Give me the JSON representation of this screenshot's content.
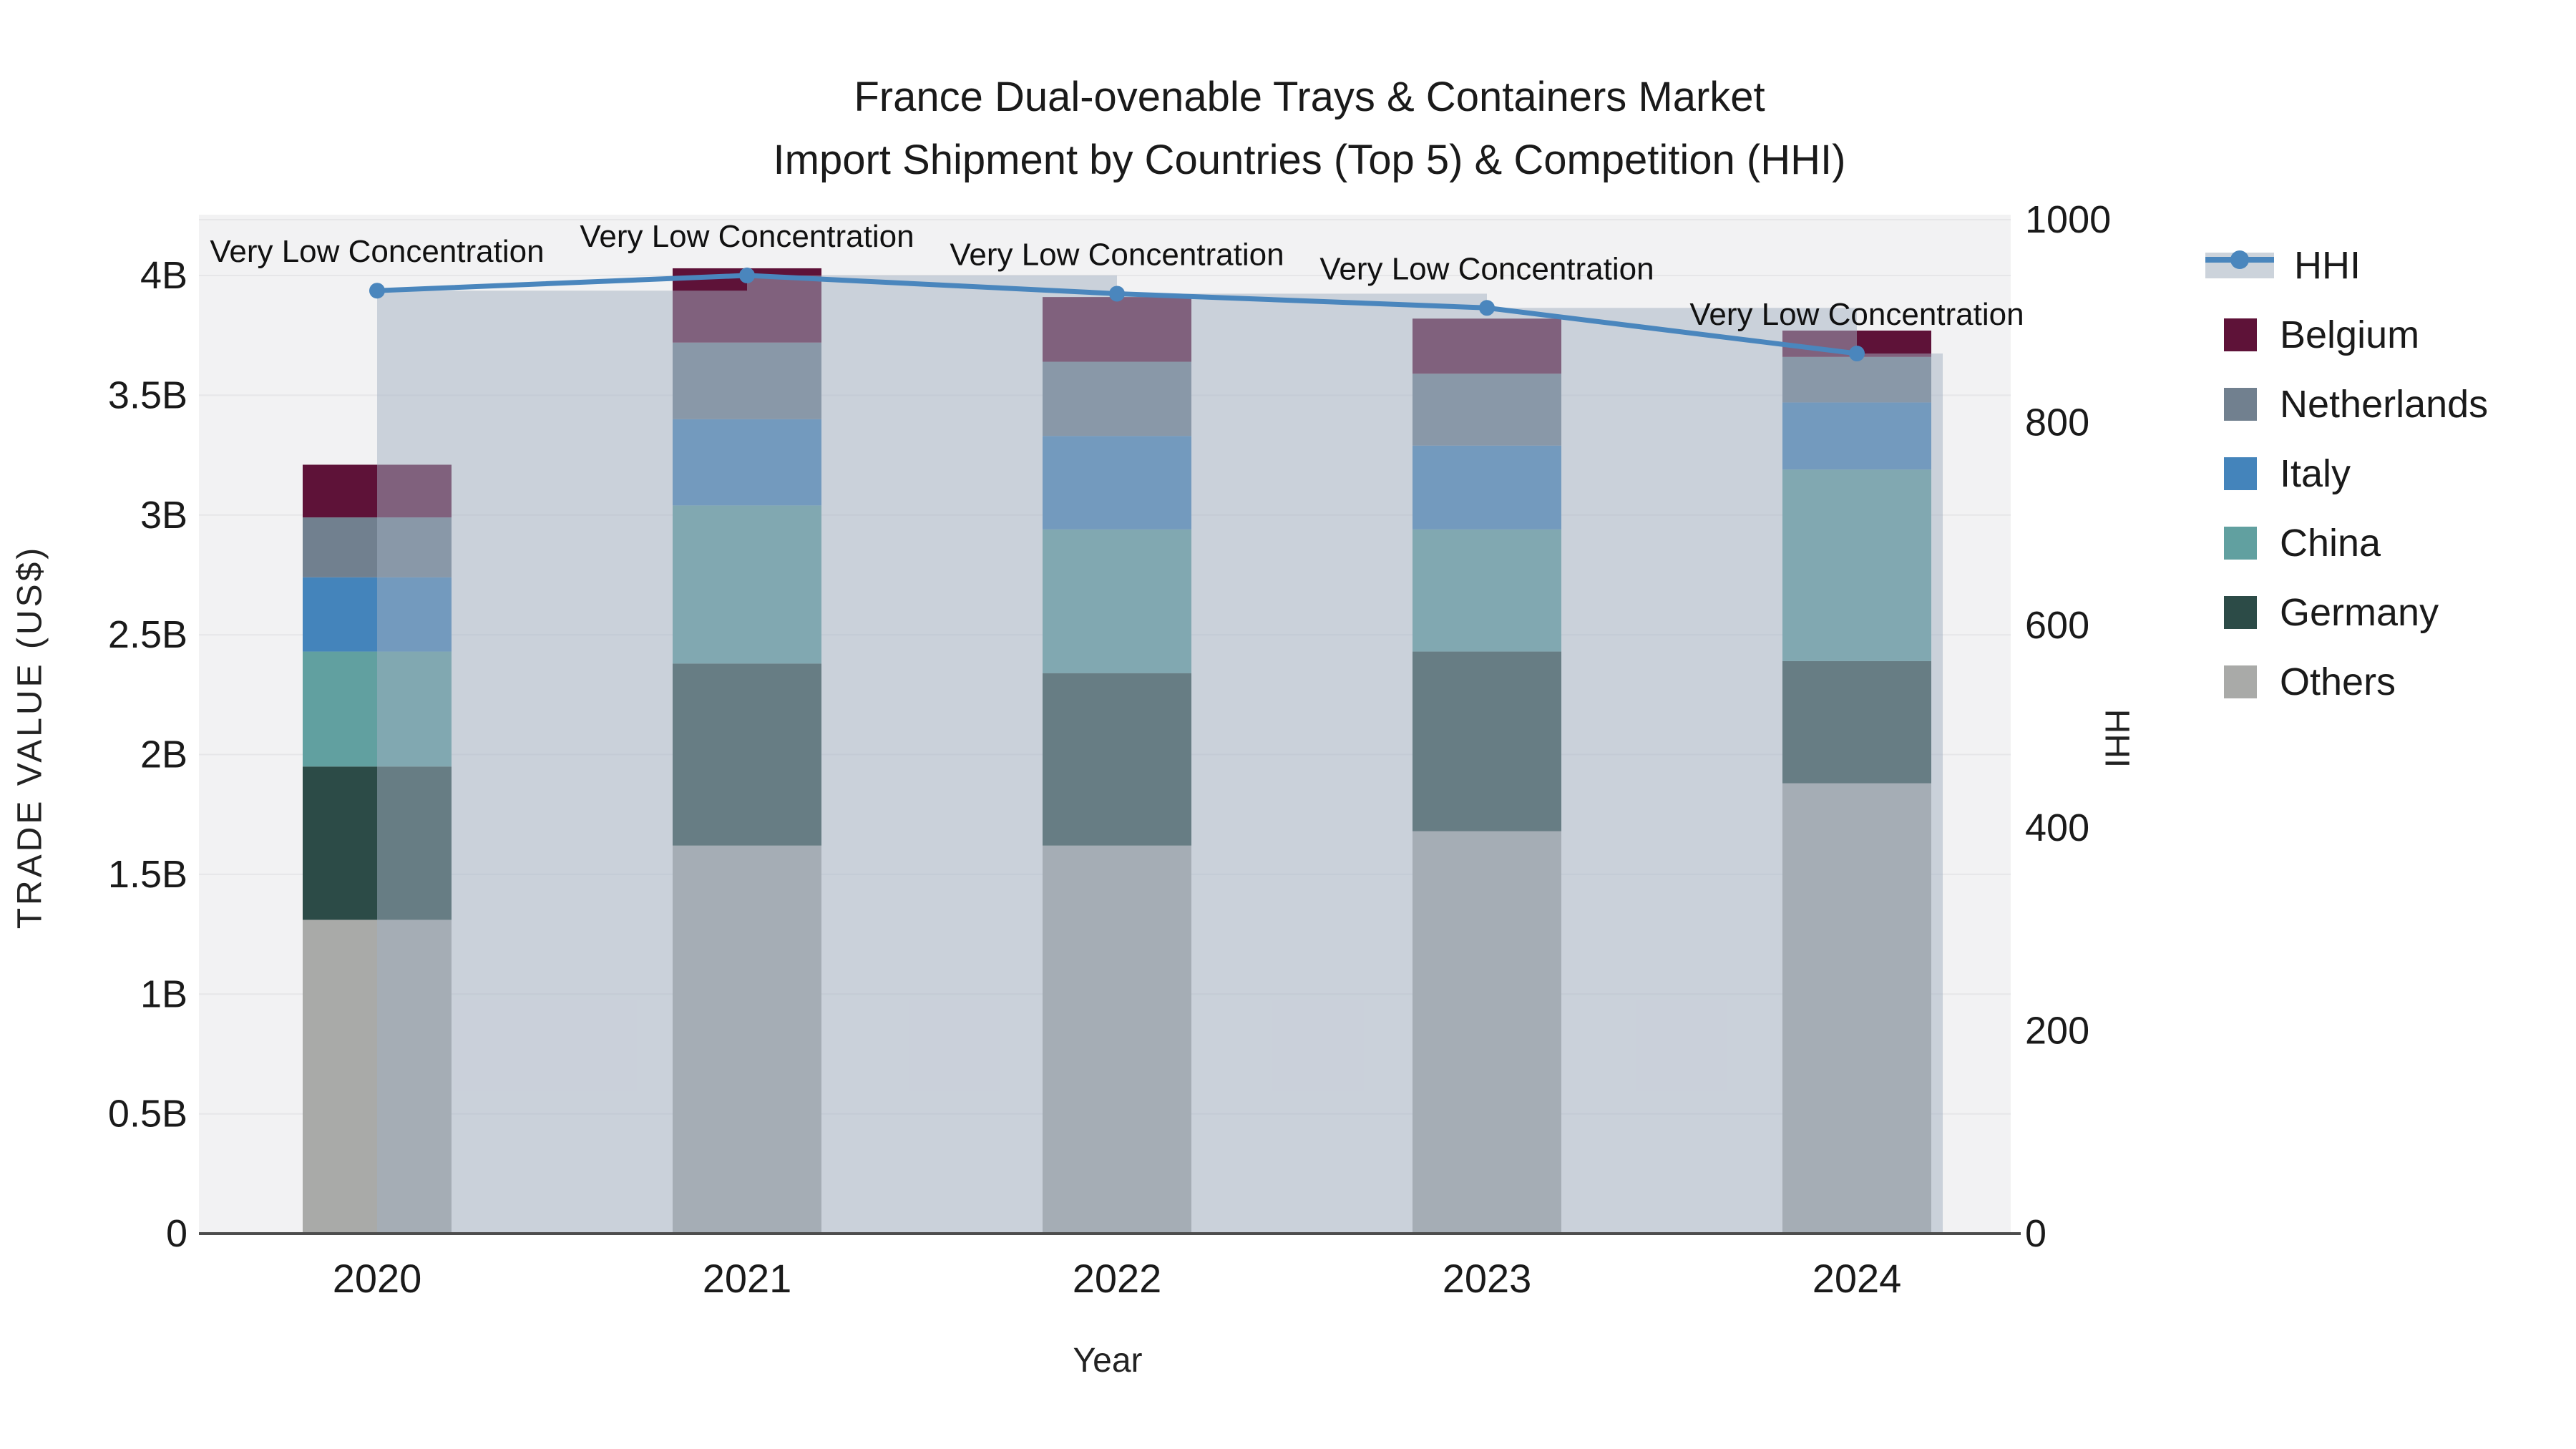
{
  "title": {
    "line1": "France Dual-ovenable Trays & Containers Market",
    "line2": "Import Shipment by Countries (Top 5) & Competition (HHI)"
  },
  "axes": {
    "x": {
      "title": "Year",
      "tick_labels": [
        "2020",
        "2021",
        "2022",
        "2023",
        "2024"
      ]
    },
    "y_left": {
      "title": "TRADE VALUE (US$)",
      "tick_labels": [
        "0",
        "0.5B",
        "1B",
        "1.5B",
        "2B",
        "2.5B",
        "3B",
        "3.5B",
        "4B"
      ],
      "tick_values": [
        0,
        0.5,
        1,
        1.5,
        2,
        2.5,
        3,
        3.5,
        4
      ],
      "range": [
        0,
        4.25
      ]
    },
    "y_right": {
      "title": "HHI",
      "tick_labels": [
        "0",
        "200",
        "400",
        "600",
        "800",
        "1000"
      ],
      "tick_values": [
        0,
        200,
        400,
        600,
        800,
        1000
      ],
      "range": [
        0,
        1005
      ]
    }
  },
  "legend": {
    "position": "right",
    "items": [
      {
        "label": "HHI",
        "type": "line",
        "color": "#4a86bd"
      },
      {
        "label": "Belgium",
        "type": "square",
        "color": "#5e1238"
      },
      {
        "label": "Netherlands",
        "type": "square",
        "color": "#71808f"
      },
      {
        "label": "Italy",
        "type": "square",
        "color": "#4484bb"
      },
      {
        "label": "China",
        "type": "square",
        "color": "#61a0a0"
      },
      {
        "label": "Germany",
        "type": "square",
        "color": "#2c4b47"
      },
      {
        "label": "Others",
        "type": "square",
        "color": "#a9aaa8"
      }
    ]
  },
  "chart_data": {
    "type": "bar",
    "subtype": "stacked bars (left axis) + HHI band bars and line (right axis)",
    "title": "France Dual-ovenable Trays & Containers Market — Import Shipment by Countries (Top 5) & Competition (HHI)",
    "categories": [
      "2020",
      "2021",
      "2022",
      "2023",
      "2024"
    ],
    "value_unit": "billions of US$",
    "xlabel": "Year",
    "ylabel_left": "TRADE VALUE (US$)",
    "ylabel_right": "HHI",
    "ylim_left": [
      0,
      4.25
    ],
    "ylim_right": [
      0,
      1005
    ],
    "grid": true,
    "legend_position": "right",
    "series": [
      {
        "name": "Others",
        "color": "#a9aaa8",
        "values": [
          1.31,
          1.62,
          1.62,
          1.68,
          1.88
        ]
      },
      {
        "name": "Germany",
        "color": "#2c4b47",
        "values": [
          0.64,
          0.76,
          0.72,
          0.75,
          0.51
        ]
      },
      {
        "name": "China",
        "color": "#61a0a0",
        "values": [
          0.48,
          0.66,
          0.6,
          0.51,
          0.8
        ]
      },
      {
        "name": "Italy",
        "color": "#4484bb",
        "values": [
          0.31,
          0.36,
          0.39,
          0.35,
          0.28
        ]
      },
      {
        "name": "Netherlands",
        "color": "#71808f",
        "values": [
          0.25,
          0.32,
          0.31,
          0.3,
          0.19
        ]
      },
      {
        "name": "Belgium",
        "color": "#5e1238",
        "values": [
          0.22,
          0.31,
          0.27,
          0.23,
          0.11
        ]
      }
    ],
    "stack_totals": [
      3.21,
      4.03,
      3.91,
      3.82,
      3.77
    ],
    "line_series": {
      "name": "HHI",
      "axis": "right",
      "color": "#4a86bd",
      "band_fill": "rgba(162,175,193,0.5)",
      "values": [
        930,
        945,
        927,
        913,
        868
      ],
      "point_annotations": [
        "Very Low Concentration",
        "Very Low Concentration",
        "Very Low Concentration",
        "Very Low Concentration",
        "Very Low Concentration"
      ]
    }
  },
  "colors": {
    "page_bg": "#ffffff",
    "plot_bg": "#f2f2f3",
    "gridline": "#e6e6e8",
    "axis_line": "#4d4d4d",
    "text": "#1a1a1a",
    "hhi_line": "#4a86bd",
    "hhi_band": "rgba(162,175,193,0.5)"
  }
}
